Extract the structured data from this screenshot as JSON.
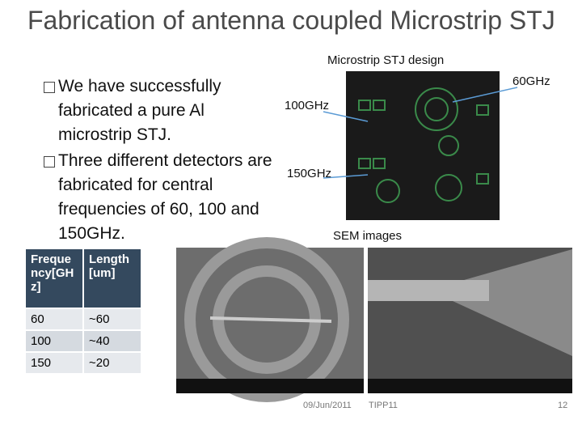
{
  "title": "Fabrication of antenna coupled Microstrip STJ",
  "bullets": [
    "We have successfully fabricated a pure Al microstrip STJ.",
    "Three different detectors are fabricated for central frequencies of 60, 100 and 150GHz."
  ],
  "figure": {
    "caption": "Microstrip STJ design",
    "labels": [
      "60GHz",
      "100GHz",
      "150GHz"
    ],
    "sem_caption": "SEM images"
  },
  "table": {
    "header": [
      "Frequency[GHz]",
      "Length[um]"
    ],
    "rows": [
      [
        "60",
        "~60"
      ],
      [
        "100",
        "~40"
      ],
      [
        "150",
        "~20"
      ]
    ]
  },
  "footer": {
    "date": "09/Jun/2011",
    "event": "TIPP11",
    "page": "12"
  }
}
